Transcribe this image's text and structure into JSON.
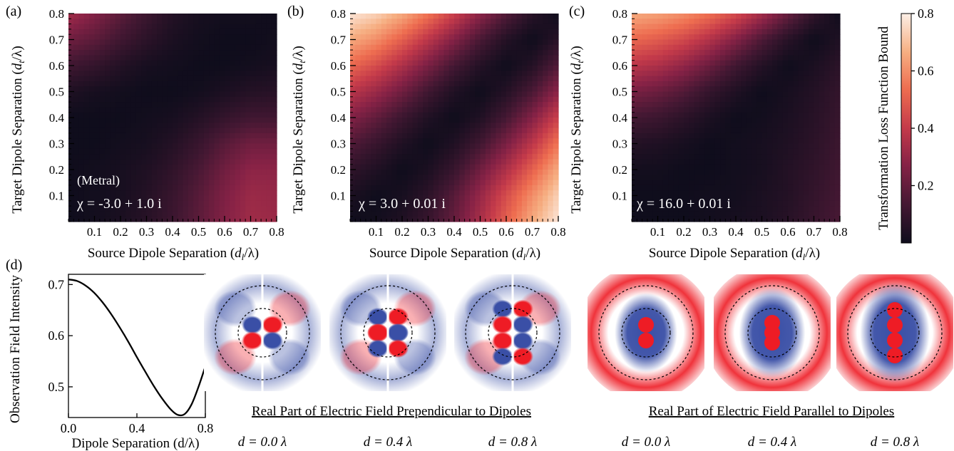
{
  "heatmaps": [
    {
      "panel_label": "(a)",
      "ylabel_main": "Target Dipole Separation (",
      "ylabel_sym": "d",
      "ylabel_sub": "t",
      "ylabel_end": "/λ)",
      "xlabel_main": "Source Dipole Separation (",
      "xlabel_sym": "d",
      "xlabel_sub": "l",
      "xlabel_end": "/λ)",
      "annotation_top": "(Metral)",
      "annotation": "χ = -3.0 + 1.0 i"
    },
    {
      "panel_label": "(b)",
      "ylabel_main": "Target Dipole Separation (",
      "ylabel_sym": "d",
      "ylabel_sub": "t",
      "ylabel_end": "/λ)",
      "xlabel_main": "Source Dipole Separation (",
      "xlabel_sym": "d",
      "xlabel_sub": "l",
      "xlabel_end": "/λ)",
      "annotation_top": "",
      "annotation": "χ = 3.0 + 0.01 i"
    },
    {
      "panel_label": "(c)",
      "ylabel_main": "Target Dipole Separation (",
      "ylabel_sym": "d",
      "ylabel_sub": "t",
      "ylabel_end": "/λ)",
      "xlabel_main": "Source Dipole Separation (",
      "xlabel_sym": "d",
      "xlabel_sub": "l",
      "xlabel_end": "/λ)",
      "annotation_top": "",
      "annotation": "χ = 16.0 + 0.01 i"
    }
  ],
  "colorbar": {
    "label": "Transformation Loss Function Bound",
    "ticks": [
      "0.8",
      "0.6",
      "0.4",
      "0.2"
    ],
    "tick_values": [
      0.8,
      0.6,
      0.4,
      0.2
    ]
  },
  "panel_d": {
    "panel_label": "(d)",
    "ylabel": "Observation Field Intensity",
    "xlabel": "Dipole Separation (d/λ)",
    "caption_perp": "Real Part of  Electric Field Prependicular to Dipoles",
    "caption_par": "Real Part of Electric Field Parallel to Dipoles",
    "field_labels": [
      "d = 0.0 λ",
      "d = 0.4 λ",
      "d = 0.8 λ",
      "d = 0.0 λ",
      "d = 0.4 λ",
      "d = 0.8 λ"
    ]
  },
  "colors": {
    "field_positive": "#ee1c25",
    "field_negative": "#3a4fa6",
    "colormap": [
      "#0f0d1c",
      "#451833",
      "#862246",
      "#c43a4a",
      "#ee6d50",
      "#f6ae81",
      "#fcefe6"
    ]
  },
  "chart_data": [
    {
      "type": "heatmap",
      "title": "",
      "xlabel": "Source Dipole Separation (dl/λ)",
      "ylabel": "Target Dipole Separation (dt/λ)",
      "xlim": [
        0.0,
        0.8
      ],
      "ylim": [
        0.0,
        0.8
      ],
      "x_ticks": [
        0.1,
        0.2,
        0.3,
        0.4,
        0.5,
        0.6,
        0.7,
        0.8
      ],
      "y_ticks": [
        0.1,
        0.2,
        0.3,
        0.4,
        0.5,
        0.6,
        0.7,
        0.8
      ],
      "color_range": [
        0.0,
        0.8
      ],
      "grid_samples": {
        "x": [
          0.0,
          0.1,
          0.2,
          0.3,
          0.4,
          0.5,
          0.6,
          0.7,
          0.8
        ],
        "y_rows_top_to_bottom": [
          0.8,
          0.7,
          0.6,
          0.5,
          0.4,
          0.3,
          0.2,
          0.1,
          0.0
        ],
        "values": [
          [
            0.33,
            0.26,
            0.18,
            0.11,
            0.05,
            0.02,
            0.01,
            0.01,
            0.0
          ],
          [
            0.22,
            0.18,
            0.12,
            0.07,
            0.03,
            0.01,
            0.0,
            0.0,
            0.01
          ],
          [
            0.12,
            0.09,
            0.05,
            0.02,
            0.01,
            0.0,
            0.0,
            0.01,
            0.02
          ],
          [
            0.04,
            0.02,
            0.01,
            0.0,
            0.0,
            0.01,
            0.03,
            0.05,
            0.06
          ],
          [
            0.0,
            0.0,
            0.0,
            0.01,
            0.02,
            0.05,
            0.09,
            0.12,
            0.12
          ],
          [
            0.0,
            0.0,
            0.01,
            0.02,
            0.05,
            0.1,
            0.17,
            0.22,
            0.22
          ],
          [
            0.0,
            0.01,
            0.02,
            0.04,
            0.08,
            0.14,
            0.22,
            0.28,
            0.28
          ],
          [
            0.0,
            0.01,
            0.02,
            0.05,
            0.1,
            0.17,
            0.25,
            0.31,
            0.3
          ],
          [
            0.0,
            0.01,
            0.03,
            0.06,
            0.11,
            0.18,
            0.26,
            0.32,
            0.31
          ]
        ]
      },
      "annotation": "χ = -3.0 + 1.0 i"
    },
    {
      "type": "heatmap",
      "title": "",
      "xlabel": "Source Dipole Separation (dl/λ)",
      "ylabel": "Target Dipole Separation (dt/λ)",
      "xlim": [
        0.0,
        0.8
      ],
      "ylim": [
        0.0,
        0.8
      ],
      "x_ticks": [
        0.1,
        0.2,
        0.3,
        0.4,
        0.5,
        0.6,
        0.7,
        0.8
      ],
      "y_ticks": [
        0.1,
        0.2,
        0.3,
        0.4,
        0.5,
        0.6,
        0.7,
        0.8
      ],
      "color_range": [
        0.0,
        0.8
      ],
      "grid_samples": {
        "x": [
          0.0,
          0.1,
          0.2,
          0.3,
          0.4,
          0.5,
          0.6,
          0.7,
          0.8
        ],
        "y_rows_top_to_bottom": [
          0.8,
          0.7,
          0.6,
          0.5,
          0.4,
          0.3,
          0.2,
          0.1,
          0.0
        ],
        "values": [
          [
            0.78,
            0.74,
            0.66,
            0.55,
            0.42,
            0.28,
            0.16,
            0.06,
            0.0
          ],
          [
            0.66,
            0.6,
            0.5,
            0.38,
            0.26,
            0.14,
            0.05,
            0.0,
            0.06
          ],
          [
            0.52,
            0.45,
            0.35,
            0.24,
            0.13,
            0.05,
            0.0,
            0.05,
            0.16
          ],
          [
            0.38,
            0.31,
            0.22,
            0.12,
            0.04,
            0.0,
            0.05,
            0.14,
            0.28
          ],
          [
            0.26,
            0.19,
            0.11,
            0.04,
            0.0,
            0.04,
            0.13,
            0.26,
            0.42
          ],
          [
            0.16,
            0.1,
            0.04,
            0.0,
            0.04,
            0.12,
            0.24,
            0.38,
            0.55
          ],
          [
            0.08,
            0.04,
            0.0,
            0.03,
            0.1,
            0.22,
            0.35,
            0.5,
            0.66
          ],
          [
            0.03,
            0.0,
            0.02,
            0.07,
            0.17,
            0.3,
            0.45,
            0.6,
            0.74
          ],
          [
            0.0,
            0.01,
            0.04,
            0.1,
            0.2,
            0.34,
            0.5,
            0.66,
            0.78
          ]
        ]
      },
      "annotation": "χ = 3.0 + 0.01 i"
    },
    {
      "type": "heatmap",
      "title": "",
      "xlabel": "Source Dipole Separation (dl/λ)",
      "ylabel": "Target Dipole Separation (dt/λ)",
      "xlim": [
        0.0,
        0.8
      ],
      "ylim": [
        0.0,
        0.8
      ],
      "x_ticks": [
        0.1,
        0.2,
        0.3,
        0.4,
        0.5,
        0.6,
        0.7,
        0.8
      ],
      "y_ticks": [
        0.1,
        0.2,
        0.3,
        0.4,
        0.5,
        0.6,
        0.7,
        0.8
      ],
      "color_range": [
        0.0,
        0.8
      ],
      "grid_samples": {
        "x": [
          0.0,
          0.1,
          0.2,
          0.3,
          0.4,
          0.5,
          0.6,
          0.7,
          0.8
        ],
        "y_rows_top_to_bottom": [
          0.8,
          0.7,
          0.6,
          0.5,
          0.4,
          0.3,
          0.2,
          0.1,
          0.0
        ],
        "values": [
          [
            0.66,
            0.64,
            0.6,
            0.54,
            0.45,
            0.33,
            0.2,
            0.08,
            0.0
          ],
          [
            0.52,
            0.49,
            0.44,
            0.36,
            0.26,
            0.15,
            0.06,
            0.0,
            0.04
          ],
          [
            0.38,
            0.35,
            0.29,
            0.21,
            0.12,
            0.05,
            0.0,
            0.03,
            0.07
          ],
          [
            0.24,
            0.21,
            0.16,
            0.09,
            0.04,
            0.0,
            0.02,
            0.05,
            0.09
          ],
          [
            0.13,
            0.11,
            0.07,
            0.03,
            0.0,
            0.01,
            0.03,
            0.06,
            0.1
          ],
          [
            0.05,
            0.04,
            0.02,
            0.0,
            0.01,
            0.02,
            0.04,
            0.07,
            0.11
          ],
          [
            0.01,
            0.01,
            0.0,
            0.0,
            0.01,
            0.02,
            0.05,
            0.08,
            0.12
          ],
          [
            0.0,
            0.0,
            0.0,
            0.01,
            0.01,
            0.03,
            0.05,
            0.09,
            0.13
          ],
          [
            0.0,
            0.0,
            0.0,
            0.01,
            0.02,
            0.03,
            0.06,
            0.1,
            0.14
          ]
        ]
      },
      "annotation": "χ = 16.0 + 0.01 i"
    },
    {
      "type": "line",
      "title": "",
      "xlabel": "Dipole Separation (d/λ)",
      "ylabel": "Observation Field Intensity",
      "xlim": [
        0.0,
        0.8
      ],
      "ylim": [
        0.44,
        0.72
      ],
      "x_ticks": [
        0.0,
        0.4,
        0.8
      ],
      "y_ticks": [
        0.5,
        0.6,
        0.7
      ],
      "series": [
        {
          "x": [
            0.0,
            0.05,
            0.1,
            0.15,
            0.2,
            0.25,
            0.3,
            0.35,
            0.4,
            0.45,
            0.5,
            0.55,
            0.6,
            0.64,
            0.68,
            0.72,
            0.76,
            0.8
          ],
          "values": [
            0.71,
            0.707,
            0.698,
            0.684,
            0.665,
            0.642,
            0.616,
            0.588,
            0.558,
            0.529,
            0.501,
            0.476,
            0.455,
            0.445,
            0.447,
            0.466,
            0.5,
            0.54
          ]
        }
      ]
    }
  ]
}
